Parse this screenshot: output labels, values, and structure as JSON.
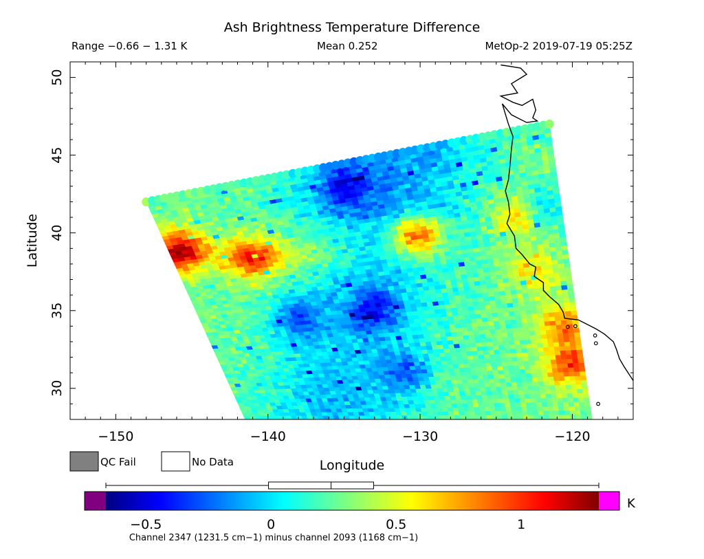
{
  "header": {
    "title": "Ash Brightness Temperature Difference",
    "range_text": "Range −0.66 − 1.31 K",
    "mean_text": "Mean 0.252",
    "satellite_time": "MetOp-2 2019-07-19 05:25Z"
  },
  "legend": {
    "qc_fail_label": "QC Fail",
    "qc_fail_color": "#808080",
    "no_data_label": "No Data",
    "no_data_color": "#ffffff"
  },
  "colorbar": {
    "unit": "K",
    "ticks": [
      -0.5,
      0,
      0.5,
      1
    ],
    "tick_labels": [
      "−0.5",
      "0",
      "0.5",
      "1"
    ],
    "vmin": -0.66,
    "vmax": 1.31,
    "under_color": "#800080",
    "over_color": "#ff00ff",
    "stats_box": {
      "whisker_low": -0.66,
      "q1": -0.01,
      "median": 0.24,
      "q3": 0.41,
      "whisker_high": 1.31
    },
    "caption": "Channel 2347 (1231.5 cm−1) minus channel 2093 (1168 cm−1)"
  },
  "chart_data": {
    "type": "heatmap",
    "title": "Ash Brightness Temperature Difference",
    "xlabel": "Longitude",
    "ylabel": "Latitude",
    "xlim": [
      -153,
      -116
    ],
    "ylim": [
      28,
      51
    ],
    "x_ticks": [
      -150,
      -140,
      -130,
      -120
    ],
    "x_tick_labels": [
      "−150",
      "−140",
      "−130",
      "−120"
    ],
    "y_ticks": [
      30,
      35,
      40,
      45,
      50
    ],
    "y_tick_labels": [
      "30",
      "35",
      "40",
      "45",
      "50"
    ],
    "value_range": [
      -0.66,
      1.31
    ],
    "mean": 0.252,
    "units": "K",
    "swath_corners_lonlat": [
      [
        -148,
        42
      ],
      [
        -121.5,
        47
      ],
      [
        -118.7,
        28
      ],
      [
        -141.5,
        28
      ]
    ],
    "features": [
      {
        "lon": -130.2,
        "lat": 39.8,
        "value": 1.1
      },
      {
        "lon": -145.8,
        "lat": 38.8,
        "value": 1.15
      },
      {
        "lon": -141,
        "lat": 38.3,
        "value": 0.85
      },
      {
        "lon": -135,
        "lat": 43,
        "value": -0.15
      },
      {
        "lon": -133,
        "lat": 35,
        "value": -0.1
      },
      {
        "lon": -131,
        "lat": 31,
        "value": -0.05
      },
      {
        "lon": -120.5,
        "lat": 34,
        "value": 0.85
      },
      {
        "lon": -120.2,
        "lat": 31.5,
        "value": 0.95
      },
      {
        "lon": -123.5,
        "lat": 41,
        "value": 0.75
      },
      {
        "lon": -122.5,
        "lat": 37.5,
        "value": 0.65
      },
      {
        "lon": -122,
        "lat": 41.5,
        "value": -0.05
      },
      {
        "lon": -138,
        "lat": 34.5,
        "value": -0.1
      }
    ]
  }
}
